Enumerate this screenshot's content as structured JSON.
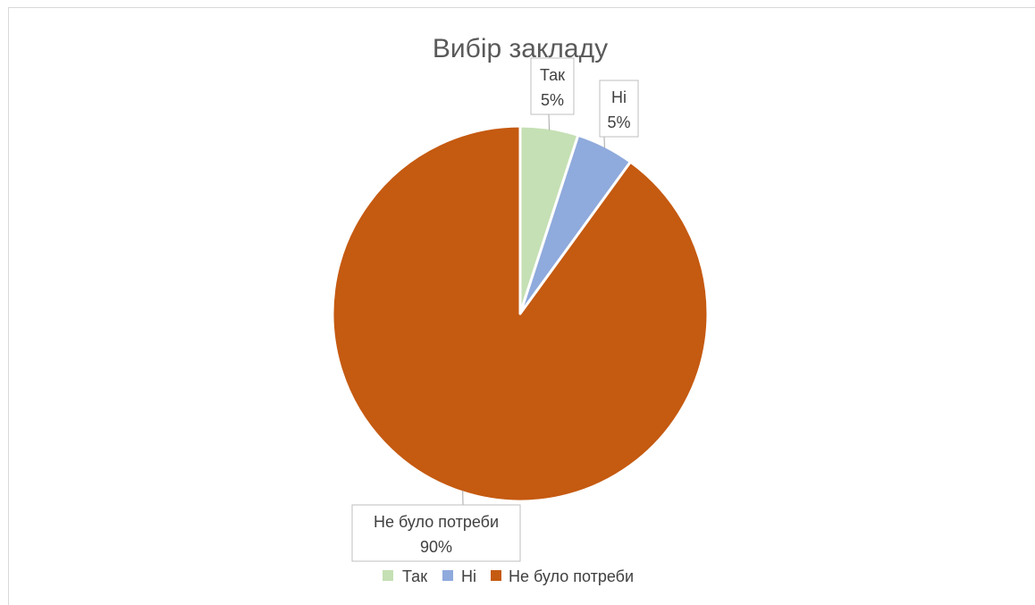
{
  "chart_data": {
    "type": "pie",
    "title": "Вибір закладу",
    "categories": [
      "Так",
      "Ні",
      "Не було потреби"
    ],
    "values": [
      5,
      5,
      90
    ],
    "data_labels": [
      "5%",
      "5%",
      "90%"
    ],
    "colors": [
      "#c5e0b4",
      "#8faadc",
      "#c55a11"
    ],
    "legend": {
      "position": "bottom",
      "entries": [
        "Так",
        "Ні",
        "Не було потреби"
      ]
    },
    "grid": false
  }
}
